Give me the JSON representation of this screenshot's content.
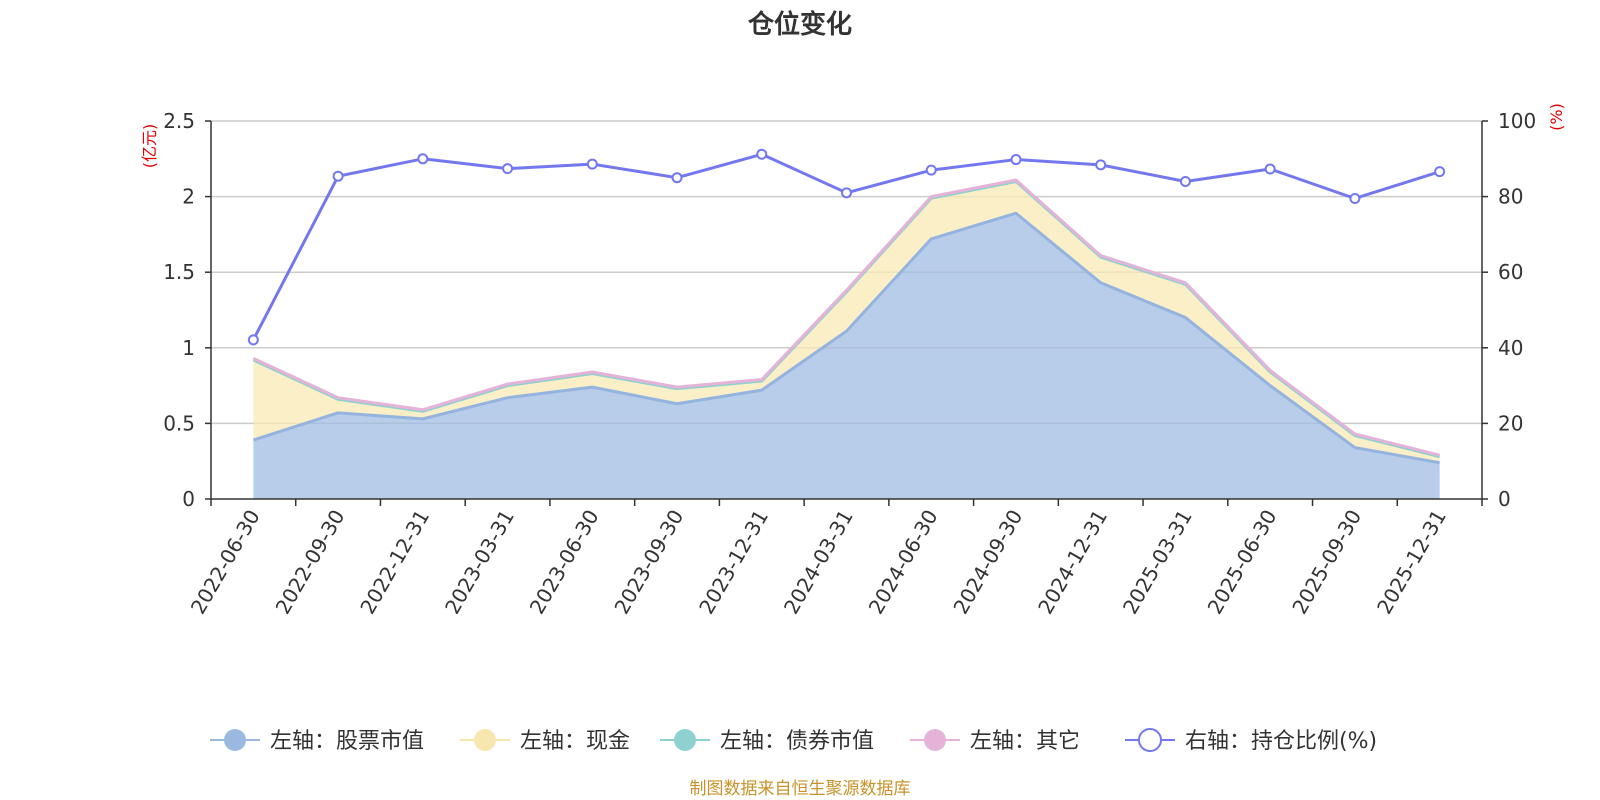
{
  "chart_data": {
    "type": "area",
    "title": "仓位变化",
    "x": [
      "2022-06-30",
      "2022-09-30",
      "2022-12-31",
      "2023-03-31",
      "2023-06-30",
      "2023-09-30",
      "2023-12-31",
      "2024-03-31",
      "2024-06-30",
      "2024-09-30",
      "2024-12-31",
      "2025-03-31",
      "2025-06-30",
      "2025-09-30",
      "2025-12-31"
    ],
    "left_axis": {
      "unit": "(亿元)",
      "ylim": [
        0,
        2.5
      ],
      "ticks": [
        "0",
        "0.5",
        "1",
        "1.5",
        "2",
        "2.5"
      ]
    },
    "right_axis": {
      "unit": "(%)",
      "ylim": [
        0,
        100
      ],
      "ticks": [
        "0",
        "20",
        "40",
        "60",
        "80",
        "100"
      ]
    },
    "stacked": true,
    "series": [
      {
        "name": "左轴：股票市值",
        "axis": "left",
        "kind": "area",
        "color": "#a0bce2",
        "values": [
          0.39,
          0.57,
          0.53,
          0.67,
          0.74,
          0.63,
          0.72,
          1.11,
          1.72,
          1.89,
          1.43,
          1.2,
          0.75,
          0.34,
          0.24
        ]
      },
      {
        "name": "左轴：现金",
        "axis": "left",
        "kind": "area",
        "color": "#f9eab4",
        "values": [
          0.53,
          0.09,
          0.05,
          0.08,
          0.09,
          0.1,
          0.06,
          0.26,
          0.27,
          0.21,
          0.17,
          0.22,
          0.09,
          0.08,
          0.04
        ]
      },
      {
        "name": "左轴：债券市值",
        "axis": "left",
        "kind": "area",
        "color": "#8fd1d1",
        "values": [
          0,
          0,
          0,
          0,
          0,
          0,
          0,
          0,
          0,
          0,
          0,
          0,
          0,
          0,
          0
        ]
      },
      {
        "name": "左轴：其它",
        "axis": "left",
        "kind": "area",
        "color": "#e8b6d8",
        "values": [
          0.01,
          0.01,
          0.01,
          0.01,
          0.01,
          0.01,
          0.01,
          0.01,
          0.01,
          0.01,
          0.01,
          0.01,
          0.01,
          0.01,
          0.01
        ]
      },
      {
        "name": "右轴：持仓比例(%)",
        "axis": "right",
        "kind": "line",
        "color": "#7478ee",
        "values": [
          42.1,
          85.4,
          90.0,
          87.4,
          88.6,
          85.0,
          91.2,
          81.0,
          87.0,
          89.8,
          88.4,
          84.0,
          87.3,
          79.5,
          86.6
        ]
      }
    ],
    "legend_position": "bottom-center",
    "grid": true,
    "source": "制图数据来自恒生聚源数据库"
  }
}
